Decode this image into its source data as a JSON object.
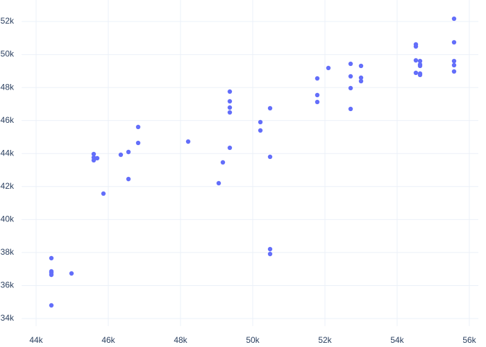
{
  "chart_data": {
    "type": "scatter",
    "color": "#636efa",
    "grid": true,
    "x": [
      44423,
      44423,
      44423,
      44423,
      44423,
      44981,
      45596,
      45596,
      45596,
      45692,
      45865,
      46346,
      46558,
      46558,
      46827,
      46827,
      48212,
      49058,
      49173,
      49365,
      49365,
      49365,
      49365,
      49365,
      50212,
      50212,
      50481,
      50481,
      50481,
      50481,
      51788,
      51788,
      51788,
      52096,
      52712,
      52712,
      52712,
      52712,
      53000,
      53000,
      53000,
      54519,
      54519,
      54519,
      54519,
      54635,
      54635,
      54635,
      54635,
      54635,
      55577,
      55577,
      55577,
      55577,
      55577
    ],
    "values": [
      37659,
      36860,
      36776,
      36650,
      34799,
      36734,
      43968,
      43758,
      43590,
      43716,
      41571,
      43926,
      44094,
      42454,
      45609,
      44641,
      44725,
      42202,
      43464,
      47754,
      47165,
      46786,
      46492,
      44347,
      45903,
      45398,
      46744,
      43800,
      38206,
      37911,
      48553,
      47543,
      47123,
      49184,
      49436,
      48679,
      47964,
      46702,
      49310,
      48595,
      48385,
      50614,
      50488,
      49646,
      48889,
      49604,
      49394,
      49310,
      48847,
      48763,
      52170,
      50740,
      49604,
      49352,
      48973
    ],
    "xlim": [
      43600,
      56250
    ],
    "ylim": [
      33550,
      53300
    ],
    "xticks": [
      {
        "value": 44000,
        "label": "44k"
      },
      {
        "value": 46000,
        "label": "46k"
      },
      {
        "value": 48000,
        "label": "48k"
      },
      {
        "value": 50000,
        "label": "50k"
      },
      {
        "value": 52000,
        "label": "52k"
      },
      {
        "value": 54000,
        "label": "54k"
      },
      {
        "value": 56000,
        "label": "56k"
      }
    ],
    "yticks": [
      {
        "value": 34000,
        "label": "34k"
      },
      {
        "value": 36000,
        "label": "36k"
      },
      {
        "value": 38000,
        "label": "38k"
      },
      {
        "value": 40000,
        "label": "40k"
      },
      {
        "value": 42000,
        "label": "42k"
      },
      {
        "value": 44000,
        "label": "44k"
      },
      {
        "value": 46000,
        "label": "46k"
      },
      {
        "value": 48000,
        "label": "48k"
      },
      {
        "value": 50000,
        "label": "50k"
      },
      {
        "value": 52000,
        "label": "52k"
      }
    ]
  }
}
